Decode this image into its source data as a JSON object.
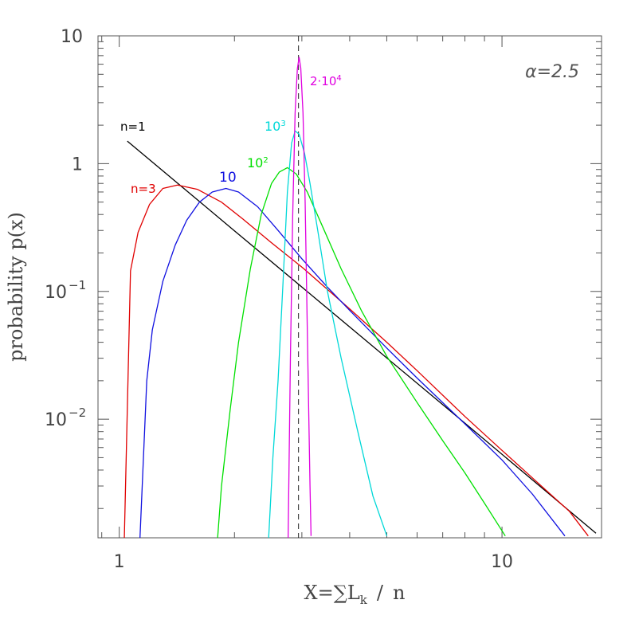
{
  "chart_data": {
    "type": "line",
    "xscale": "log",
    "yscale": "log",
    "xlim": [
      0.88,
      18.2
    ],
    "ylim": [
      0.00118,
      10
    ],
    "xlabel": "X=∑L_k / n",
    "ylabel": "probability p(x)",
    "xticks": [
      {
        "value": 1,
        "label": "1"
      },
      {
        "value": 10,
        "label": "10"
      }
    ],
    "yticks": [
      {
        "value": 10,
        "label": "10"
      },
      {
        "value": 1,
        "label": "1"
      },
      {
        "value": 0.1,
        "label": "10",
        "exp": "−1"
      },
      {
        "value": 0.01,
        "label": "10",
        "exp": "−2"
      }
    ],
    "annotation": "α=2.5",
    "reference_line": {
      "x": 2.94,
      "style": "dashed"
    },
    "series": [
      {
        "name": "n=1",
        "label": "n=1",
        "color": "#000000",
        "points": [
          [
            1.05,
            1.5
          ],
          [
            2,
            0.298
          ],
          [
            4,
            0.0527
          ],
          [
            8,
            0.00932
          ],
          [
            17.6,
            0.00128
          ]
        ]
      },
      {
        "name": "n=3",
        "label": "n=3",
        "color": "#e00000",
        "points": [
          [
            1.03,
            0.001
          ],
          [
            1.07,
            0.145
          ],
          [
            1.12,
            0.29
          ],
          [
            1.2,
            0.48
          ],
          [
            1.3,
            0.64
          ],
          [
            1.42,
            0.68
          ],
          [
            1.6,
            0.63
          ],
          [
            1.85,
            0.5
          ],
          [
            2.1,
            0.37
          ],
          [
            2.5,
            0.24
          ],
          [
            3,
            0.155
          ],
          [
            4,
            0.073
          ],
          [
            5,
            0.04
          ],
          [
            6,
            0.024
          ],
          [
            8,
            0.0105
          ],
          [
            10,
            0.0057
          ],
          [
            13,
            0.0028
          ],
          [
            15,
            0.0019
          ],
          [
            16.8,
            0.00122
          ]
        ]
      },
      {
        "name": "10",
        "label": "10",
        "color": "#1010e0",
        "points": [
          [
            1.13,
            0.001
          ],
          [
            1.18,
            0.02
          ],
          [
            1.22,
            0.05
          ],
          [
            1.3,
            0.12
          ],
          [
            1.4,
            0.23
          ],
          [
            1.5,
            0.36
          ],
          [
            1.62,
            0.5
          ],
          [
            1.75,
            0.6
          ],
          [
            1.9,
            0.64
          ],
          [
            2.05,
            0.6
          ],
          [
            2.3,
            0.46
          ],
          [
            2.6,
            0.3
          ],
          [
            3,
            0.18
          ],
          [
            3.5,
            0.108
          ],
          [
            4,
            0.071
          ],
          [
            5,
            0.036
          ],
          [
            6,
            0.021
          ],
          [
            8,
            0.0092
          ],
          [
            10,
            0.0048
          ],
          [
            12,
            0.0026
          ],
          [
            14.6,
            0.00122
          ]
        ]
      },
      {
        "name": "10²",
        "label": "10",
        "exp": "2",
        "color": "#00e000",
        "points": [
          [
            1.8,
            0.001
          ],
          [
            1.85,
            0.003
          ],
          [
            1.95,
            0.012
          ],
          [
            2.05,
            0.04
          ],
          [
            2.2,
            0.15
          ],
          [
            2.35,
            0.4
          ],
          [
            2.5,
            0.7
          ],
          [
            2.62,
            0.86
          ],
          [
            2.75,
            0.93
          ],
          [
            2.9,
            0.83
          ],
          [
            3.1,
            0.6
          ],
          [
            3.4,
            0.32
          ],
          [
            3.8,
            0.15
          ],
          [
            4.3,
            0.07
          ],
          [
            5,
            0.031
          ],
          [
            6,
            0.0135
          ],
          [
            7,
            0.0068
          ],
          [
            8,
            0.0038
          ],
          [
            9,
            0.0022
          ],
          [
            10.2,
            0.00122
          ]
        ]
      },
      {
        "name": "10³",
        "label": "10",
        "exp": "3",
        "color": "#00d8d8",
        "points": [
          [
            2.45,
            0.001
          ],
          [
            2.52,
            0.005
          ],
          [
            2.6,
            0.02
          ],
          [
            2.68,
            0.12
          ],
          [
            2.75,
            0.6
          ],
          [
            2.82,
            1.45
          ],
          [
            2.88,
            1.8
          ],
          [
            2.95,
            1.7
          ],
          [
            3.05,
            1.2
          ],
          [
            3.15,
            0.7
          ],
          [
            3.3,
            0.3
          ],
          [
            3.5,
            0.1
          ],
          [
            3.8,
            0.03
          ],
          [
            4.2,
            0.008
          ],
          [
            4.6,
            0.0025
          ],
          [
            5,
            0.00122
          ]
        ]
      },
      {
        "name": "2·10⁴",
        "label": "2·10",
        "exp": "4",
        "color": "#e000e0",
        "points": [
          [
            2.76,
            0.001
          ],
          [
            2.8,
            0.03
          ],
          [
            2.84,
            0.4
          ],
          [
            2.88,
            2.5
          ],
          [
            2.92,
            5.5
          ],
          [
            2.95,
            6.8
          ],
          [
            2.98,
            5.6
          ],
          [
            3.02,
            2.5
          ],
          [
            3.06,
            0.5
          ],
          [
            3.1,
            0.05
          ],
          [
            3.15,
            0.003
          ],
          [
            3.17,
            0.00122
          ]
        ]
      }
    ]
  }
}
